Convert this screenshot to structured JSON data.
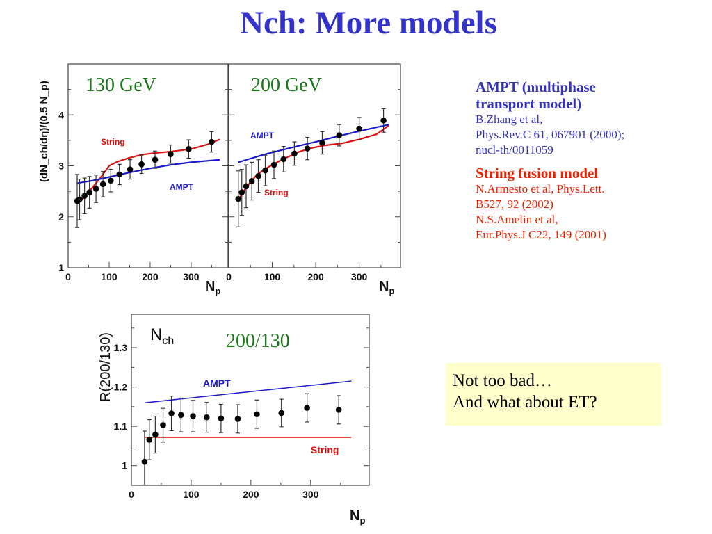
{
  "title": "Nch: More models",
  "references": {
    "ampt_heading_line1": "AMPT (multiphase",
    "ampt_heading_line2": "transport model)",
    "ampt_ref_lines": [
      "B.Zhang et al,",
      "Phys.Rev.C 61, 067901 (2000);",
      "nucl-th/0011059"
    ],
    "string_heading": "String fusion model",
    "string_ref_lines": [
      "N.Armesto et al, Phys.Lett.",
      "B527, 92 (2002)",
      "N.S.Amelin et al,",
      "Eur.Phys.J C22, 149 (2001)"
    ]
  },
  "note": {
    "line1": "Not too bad…",
    "line2": "And what about ET?"
  },
  "colors": {
    "title": "#3333cc",
    "ampt": "#1a1acc",
    "string": "#dd1111",
    "label_green": "#1a7a1a",
    "note_bg": "#ffffcc"
  },
  "chart_data": [
    {
      "type": "scatter",
      "title": "130 GeV",
      "xlabel": "N_p",
      "ylabel": "(dN_ch/dη)/(0.5 N_p)",
      "xlim": [
        0,
        390
      ],
      "ylim": [
        1,
        5
      ],
      "xticks": [
        "0",
        "100",
        "200",
        "300"
      ],
      "yticks": [
        "1",
        "2",
        "3",
        "4"
      ],
      "series": [
        {
          "name": "data",
          "x": [
            22,
            28,
            40,
            52,
            68,
            85,
            104,
            125,
            151,
            179,
            212,
            250,
            294,
            350
          ],
          "y": [
            2.31,
            2.34,
            2.41,
            2.48,
            2.55,
            2.64,
            2.71,
            2.83,
            2.93,
            3.03,
            3.12,
            3.23,
            3.33,
            3.47
          ],
          "err": [
            0.52,
            0.4,
            0.35,
            0.31,
            0.27,
            0.25,
            0.22,
            0.2,
            0.19,
            0.18,
            0.17,
            0.18,
            0.18,
            0.2
          ]
        },
        {
          "name": "String",
          "x": [
            22,
            40,
            60,
            80,
            100,
            120,
            150,
            180,
            210,
            250,
            300,
            340,
            370
          ],
          "y": [
            2.25,
            2.4,
            2.58,
            2.78,
            3.0,
            3.08,
            3.16,
            3.22,
            3.25,
            3.28,
            3.33,
            3.42,
            3.52
          ]
        },
        {
          "name": "AMPT",
          "x": [
            22,
            60,
            100,
            150,
            200,
            250,
            300,
            370
          ],
          "y": [
            2.66,
            2.71,
            2.78,
            2.87,
            2.95,
            3.02,
            3.07,
            3.12
          ]
        }
      ],
      "annotations": [
        "String",
        "AMPT"
      ]
    },
    {
      "type": "scatter",
      "title": "200 GeV",
      "xlabel": "N_p",
      "xlim": [
        0,
        395
      ],
      "ylim": [
        1,
        5
      ],
      "xticks": [
        "0",
        "100",
        "200",
        "300"
      ],
      "series": [
        {
          "name": "data",
          "x": [
            22,
            30,
            40,
            53,
            68,
            84,
            104,
            126,
            151,
            181,
            215,
            254,
            300,
            356
          ],
          "y": [
            2.35,
            2.48,
            2.6,
            2.7,
            2.8,
            2.91,
            3.02,
            3.13,
            3.24,
            3.34,
            3.45,
            3.6,
            3.73,
            3.89
          ],
          "err": [
            0.55,
            0.45,
            0.42,
            0.37,
            0.32,
            0.3,
            0.27,
            0.25,
            0.23,
            0.22,
            0.22,
            0.21,
            0.22,
            0.23
          ]
        },
        {
          "name": "String",
          "x": [
            22,
            40,
            60,
            80,
            100,
            130,
            160,
            190,
            220,
            260,
            300,
            340,
            368
          ],
          "y": [
            2.33,
            2.58,
            2.78,
            2.92,
            3.02,
            3.15,
            3.27,
            3.35,
            3.4,
            3.44,
            3.52,
            3.62,
            3.79
          ]
        },
        {
          "name": "AMPT",
          "x": [
            22,
            80,
            150,
            200,
            250,
            300,
            368
          ],
          "y": [
            3.07,
            3.22,
            3.37,
            3.47,
            3.58,
            3.68,
            3.81
          ]
        }
      ],
      "annotations": [
        "AMPT",
        "String"
      ]
    },
    {
      "type": "scatter",
      "title": "200/130",
      "label": "N",
      "label_sub": "ch",
      "xlabel": "N_p",
      "ylabel": "R(200/130)",
      "xlim": [
        0,
        398
      ],
      "ylim": [
        0.95,
        1.385
      ],
      "xticks": [
        "0",
        "100",
        "200",
        "300"
      ],
      "yticks": [
        "1",
        "1.1",
        "1.2",
        "1.3"
      ],
      "series": [
        {
          "name": "data",
          "x": [
            22,
            30,
            40,
            53,
            67,
            83,
            103,
            126,
            150,
            178,
            210,
            251,
            294,
            347
          ],
          "y": [
            1.01,
            1.066,
            1.079,
            1.103,
            1.133,
            1.129,
            1.126,
            1.123,
            1.12,
            1.119,
            1.131,
            1.134,
            1.147,
            1.142
          ],
          "err": [
            0.078,
            0.051,
            0.047,
            0.043,
            0.044,
            0.043,
            0.04,
            0.038,
            0.036,
            0.036,
            0.036,
            0.035,
            0.036,
            0.036
          ]
        },
        {
          "name": "String",
          "x": [
            22,
            368
          ],
          "y": [
            1.072,
            1.072
          ]
        },
        {
          "name": "AMPT",
          "x": [
            22,
            368
          ],
          "y": [
            1.16,
            1.215
          ]
        }
      ],
      "annotations": [
        "AMPT",
        "String"
      ]
    }
  ]
}
